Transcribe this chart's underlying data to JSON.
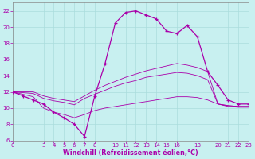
{
  "xlabel": "Windchill (Refroidissement éolien,°C)",
  "bg_color": "#c8f0f0",
  "line_color": "#aa00aa",
  "grid_color": "#aadddd",
  "xlim": [
    0,
    23
  ],
  "ylim": [
    6,
    23
  ],
  "xticks": [
    0,
    3,
    4,
    5,
    6,
    7,
    8,
    10,
    11,
    12,
    13,
    14,
    15,
    16,
    18,
    20,
    21,
    22,
    23
  ],
  "yticks": [
    6,
    8,
    10,
    12,
    14,
    16,
    18,
    20,
    22
  ],
  "main_x": [
    0,
    1,
    2,
    3,
    4,
    5,
    6,
    7,
    8,
    9,
    10,
    11,
    12,
    13,
    14,
    15,
    16,
    17,
    18,
    19,
    20,
    21,
    22,
    23
  ],
  "main_y": [
    12,
    11.5,
    11,
    10.5,
    9.5,
    8.8,
    8.0,
    6.5,
    11.5,
    15.5,
    20.5,
    21.8,
    22.0,
    21.5,
    21.0,
    19.5,
    19.2,
    20.2,
    18.8,
    14.5,
    12.8,
    11.0,
    10.5,
    10.5
  ],
  "upper_x": [
    0,
    1,
    2,
    3,
    4,
    5,
    6,
    7,
    8,
    9,
    10,
    11,
    12,
    13,
    14,
    15,
    16,
    17,
    18,
    19,
    20,
    21,
    22,
    23
  ],
  "upper_y": [
    12,
    12,
    12,
    11.5,
    11.2,
    11.0,
    10.8,
    11.5,
    12.2,
    12.8,
    13.3,
    13.8,
    14.2,
    14.6,
    14.9,
    15.2,
    15.5,
    15.3,
    15.0,
    14.5,
    10.5,
    10.3,
    10.2,
    10.2
  ],
  "mid_x": [
    0,
    1,
    2,
    3,
    4,
    5,
    6,
    7,
    8,
    9,
    10,
    11,
    12,
    13,
    14,
    15,
    16,
    17,
    18,
    19,
    20,
    21,
    22,
    23
  ],
  "mid_y": [
    12,
    11.9,
    11.8,
    11.2,
    10.9,
    10.7,
    10.4,
    11.2,
    11.7,
    12.2,
    12.7,
    13.1,
    13.4,
    13.8,
    14.0,
    14.2,
    14.4,
    14.3,
    14.0,
    13.5,
    10.5,
    10.3,
    10.2,
    10.2
  ],
  "lower_x": [
    0,
    1,
    2,
    3,
    4,
    5,
    6,
    7,
    8,
    9,
    10,
    11,
    12,
    13,
    14,
    15,
    16,
    17,
    18,
    19,
    20,
    21,
    22,
    23
  ],
  "lower_y": [
    12,
    11.7,
    11.4,
    10.0,
    9.5,
    9.2,
    8.8,
    9.2,
    9.7,
    10.0,
    10.2,
    10.4,
    10.6,
    10.8,
    11.0,
    11.2,
    11.4,
    11.4,
    11.3,
    11.0,
    10.5,
    10.2,
    10.1,
    10.1
  ]
}
